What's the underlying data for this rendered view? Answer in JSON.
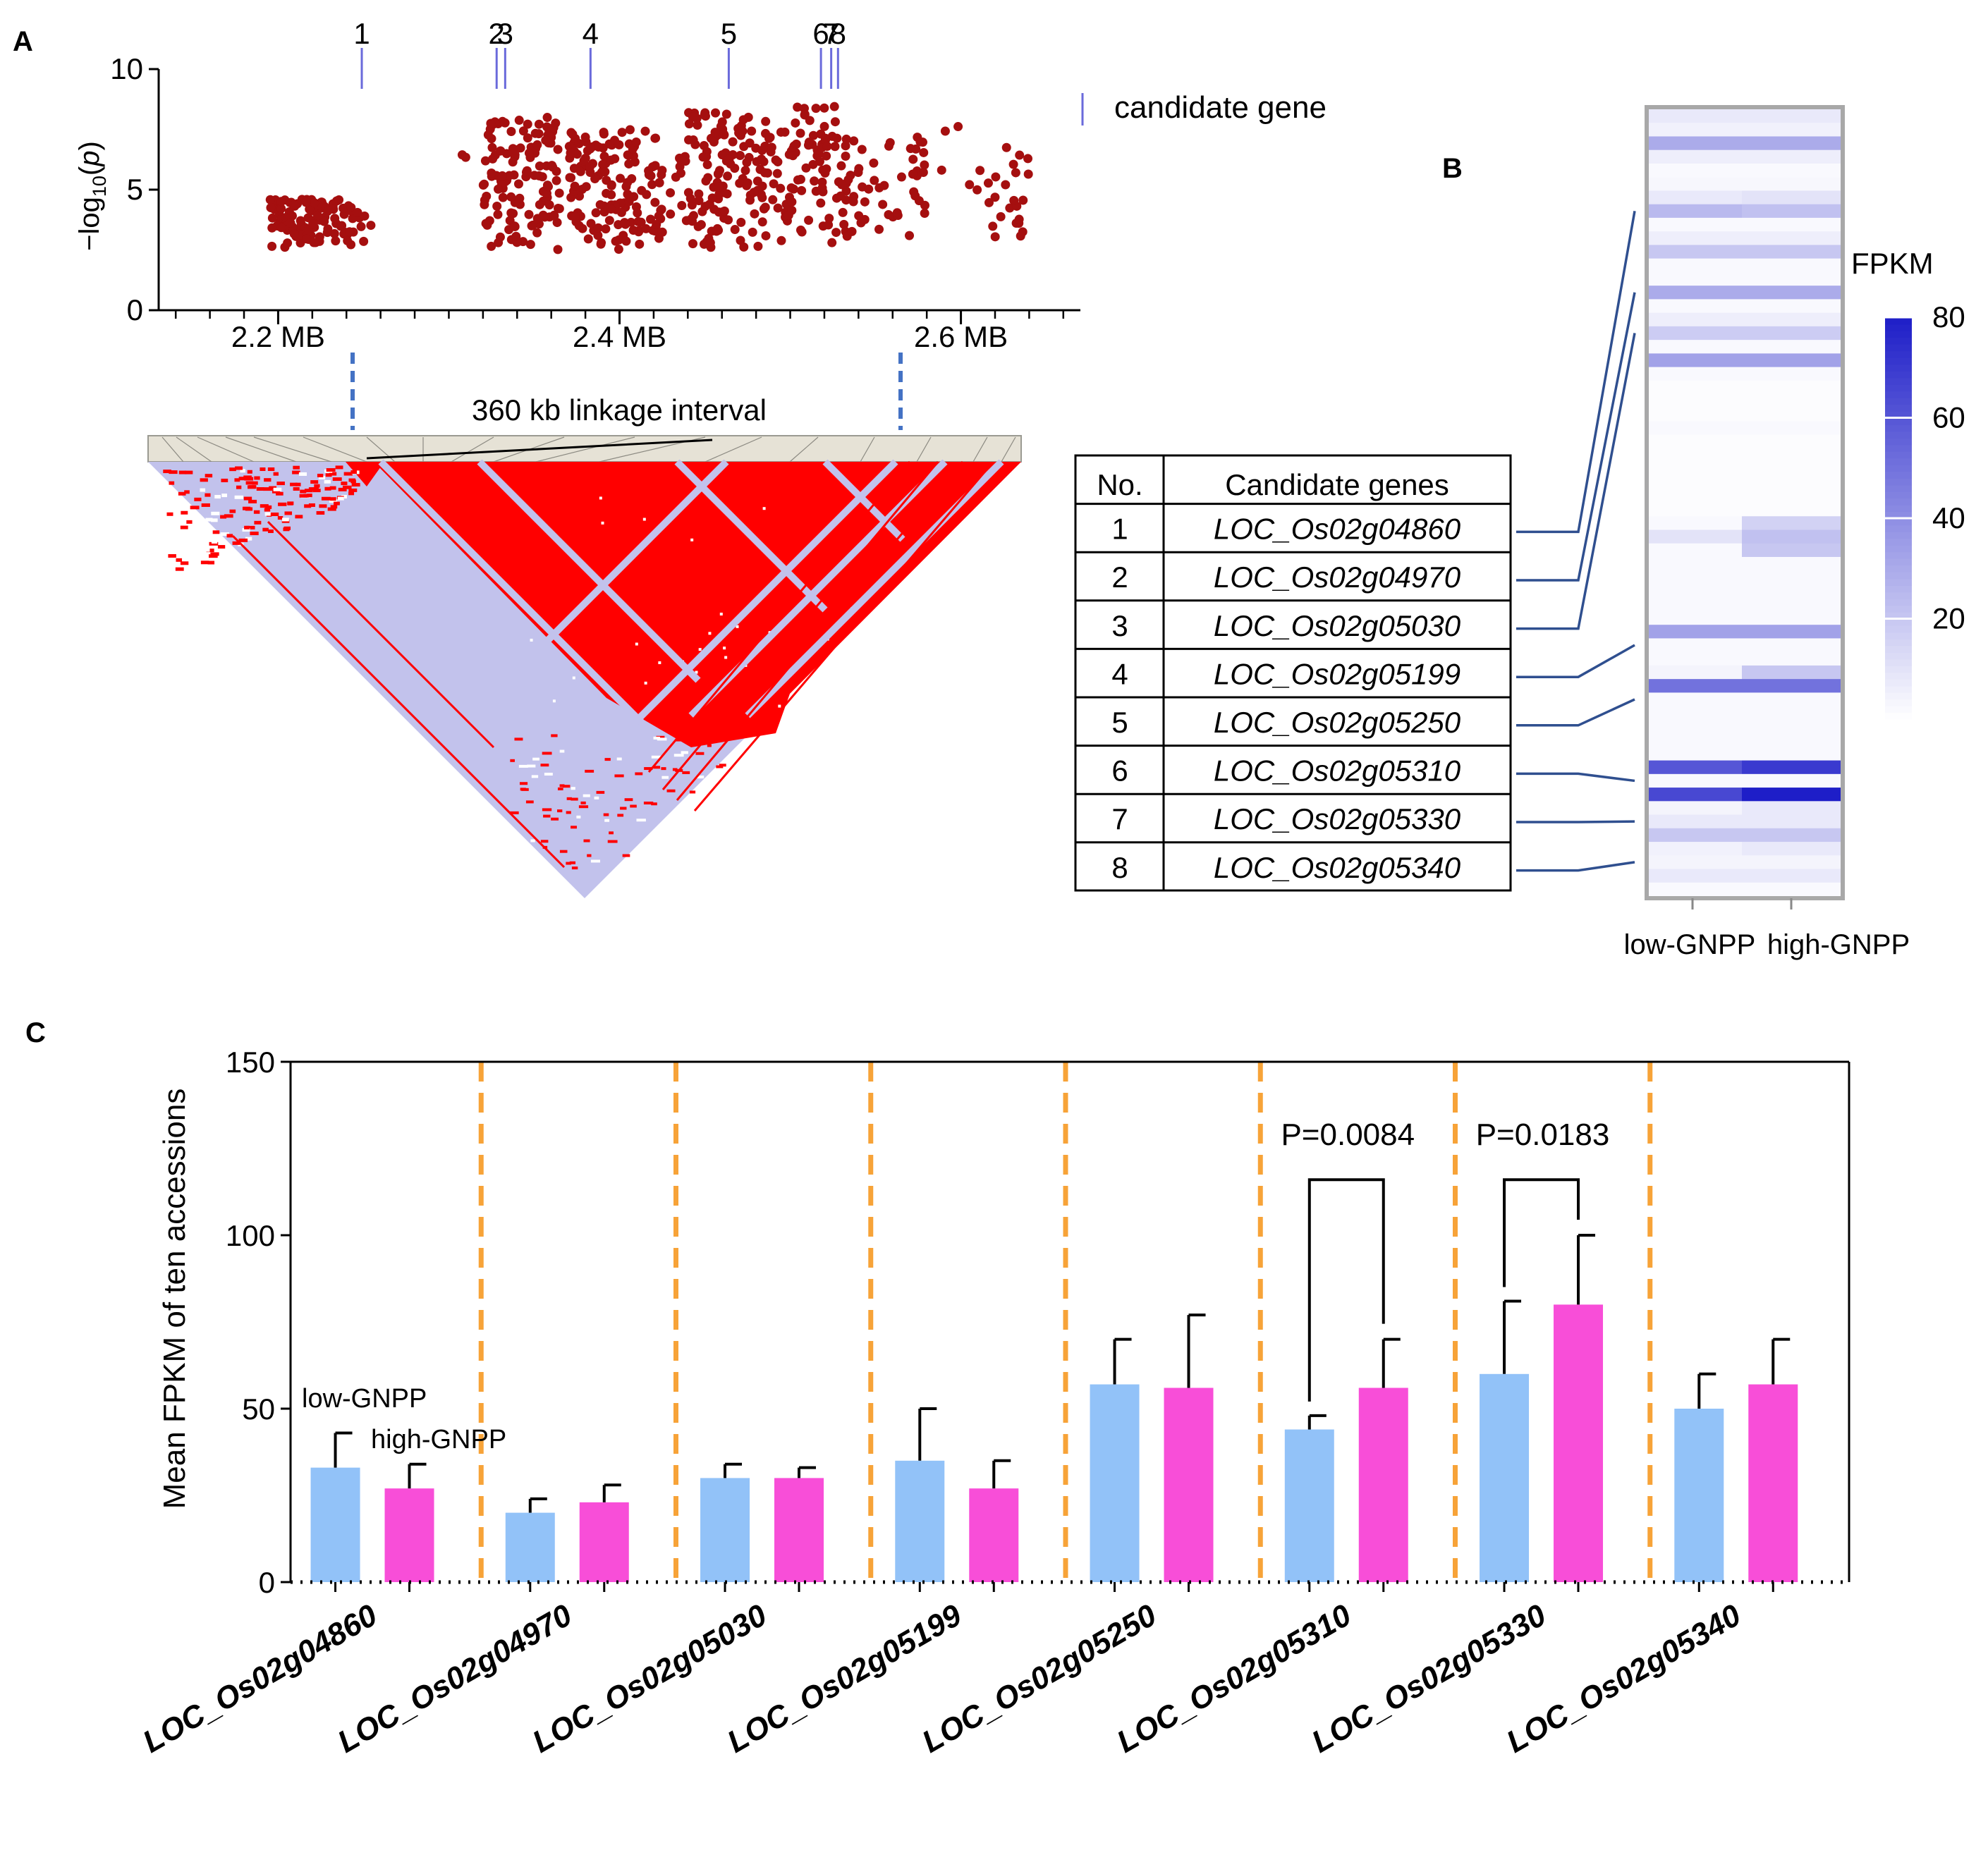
{
  "panels": {
    "a": "A",
    "b": "B",
    "c": "C"
  },
  "chart_data": [
    {
      "id": "manhattan",
      "type": "scatter",
      "ylabel_html": "-log10(p)",
      "ylabel_prefix": "−log",
      "ylabel_sub": "10",
      "ylabel_suffix": "(p)",
      "yticks": [
        0,
        5,
        10
      ],
      "ylim": [
        0,
        10
      ],
      "xlim": [
        2.13,
        2.67
      ],
      "xticks": [
        {
          "v": 2.2,
          "label": "2.2 MB"
        },
        {
          "v": 2.4,
          "label": "2.4 MB"
        },
        {
          "v": 2.6,
          "label": "2.6 MB"
        }
      ],
      "point_color": "#a50f0f",
      "clusters": [
        {
          "x": [
            2.195,
            2.245
          ],
          "y": [
            2.6,
            4.6
          ],
          "n": 100
        },
        {
          "x": [
            2.246,
            2.255
          ],
          "y": [
            2.8,
            4.2
          ],
          "n": 6
        },
        {
          "x": [
            2.305,
            2.31
          ],
          "y": [
            6.0,
            6.5
          ],
          "n": 2
        },
        {
          "x": [
            2.32,
            2.365
          ],
          "y": [
            2.5,
            8.0
          ],
          "n": 130
        },
        {
          "x": [
            2.37,
            2.425
          ],
          "y": [
            2.5,
            7.5
          ],
          "n": 150
        },
        {
          "x": [
            2.425,
            2.44
          ],
          "y": [
            3.0,
            6.5
          ],
          "n": 14
        },
        {
          "x": [
            2.44,
            2.5
          ],
          "y": [
            2.6,
            8.2
          ],
          "n": 150
        },
        {
          "x": [
            2.5,
            2.535
          ],
          "y": [
            2.6,
            8.5
          ],
          "n": 80
        },
        {
          "x": [
            2.535,
            2.58
          ],
          "y": [
            2.8,
            7.3
          ],
          "n": 45
        },
        {
          "x": [
            2.585,
            2.6
          ],
          "y": [
            4.5,
            8.5
          ],
          "n": 3
        },
        {
          "x": [
            2.605,
            2.625
          ],
          "y": [
            2.8,
            6.2
          ],
          "n": 10
        },
        {
          "x": [
            2.625,
            2.64
          ],
          "y": [
            2.7,
            7.2
          ],
          "n": 16
        }
      ],
      "genes": [
        {
          "label": "1",
          "pos": 2.249
        },
        {
          "label": "2",
          "pos": 2.328
        },
        {
          "label": "3",
          "pos": 2.333
        },
        {
          "label": "4",
          "pos": 2.383
        },
        {
          "label": "5",
          "pos": 2.464
        },
        {
          "label": "6",
          "pos": 2.518
        },
        {
          "label": "7",
          "pos": 2.524
        },
        {
          "label": "8",
          "pos": 2.528
        }
      ],
      "legend": "candidate gene",
      "gene_color": "#6a6adb"
    },
    {
      "id": "heatmap",
      "type": "heatmap",
      "title": "FPKM",
      "columns": [
        "low-GNPP",
        "high-GNPP"
      ],
      "colorbar_ticks": [
        20,
        40,
        60,
        80
      ],
      "vmax": 80,
      "rows": [
        [
          8,
          8
        ],
        [
          5,
          5
        ],
        [
          30,
          30
        ],
        [
          6,
          6
        ],
        [
          2,
          2
        ],
        [
          3,
          3
        ],
        [
          8,
          10
        ],
        [
          25,
          22
        ],
        [
          2,
          2
        ],
        [
          6,
          6
        ],
        [
          20,
          20
        ],
        [
          2,
          2
        ],
        [
          2,
          2
        ],
        [
          30,
          30
        ],
        [
          2,
          2
        ],
        [
          6,
          6
        ],
        [
          18,
          18
        ],
        [
          2,
          2
        ],
        [
          33,
          33
        ],
        [
          2,
          2
        ],
        [
          1,
          1
        ],
        [
          1,
          1
        ],
        [
          1,
          1
        ],
        [
          2,
          2
        ],
        [
          1,
          1
        ],
        [
          1,
          1
        ],
        [
          1,
          1
        ],
        [
          1,
          1
        ],
        [
          1,
          1
        ],
        [
          1,
          1
        ],
        [
          2,
          16
        ],
        [
          10,
          22
        ],
        [
          2,
          20
        ],
        [
          2,
          2
        ],
        [
          2,
          2
        ],
        [
          2,
          2
        ],
        [
          2,
          2
        ],
        [
          2,
          2
        ],
        [
          33,
          33
        ],
        [
          2,
          2
        ],
        [
          2,
          2
        ],
        [
          4,
          20
        ],
        [
          50,
          50
        ],
        [
          2,
          2
        ],
        [
          2,
          2
        ],
        [
          2,
          2
        ],
        [
          2,
          2
        ],
        [
          2,
          2
        ],
        [
          60,
          70
        ],
        [
          2,
          2
        ],
        [
          65,
          80
        ],
        [
          4,
          8
        ],
        [
          8,
          8
        ],
        [
          20,
          20
        ],
        [
          5,
          8
        ],
        [
          4,
          4
        ],
        [
          8,
          8
        ],
        [
          2,
          2
        ]
      ],
      "gene_rows": [
        7,
        13,
        16,
        39,
        43,
        49,
        52,
        55
      ]
    },
    {
      "id": "bars",
      "type": "bar",
      "ylabel": "Mean FPKM of ten accessions",
      "yticks": [
        0,
        50,
        100,
        150
      ],
      "ylim": [
        0,
        150
      ],
      "categories": [
        "LOC_Os02g04860",
        "LOC_Os02g04970",
        "LOC_Os02g05030",
        "LOC_Os02g05199",
        "LOC_Os02g05250",
        "LOC_Os02g05310",
        "LOC_Os02g05330",
        "LOC_Os02g05340"
      ],
      "series": [
        {
          "name": "low-GNPP",
          "color": "#92c2f8",
          "values": [
            33,
            20,
            30,
            35,
            57,
            44,
            60,
            50
          ],
          "err": [
            10,
            4,
            4,
            15,
            13,
            4,
            21,
            10
          ]
        },
        {
          "name": "high-GNPP",
          "color": "#f84ed8",
          "values": [
            27,
            23,
            30,
            27,
            56,
            56,
            80,
            57
          ],
          "err": [
            7,
            5,
            3,
            8,
            21,
            14,
            20,
            13
          ]
        }
      ],
      "annotations": [
        {
          "group": 5,
          "text": "P=0.0084"
        },
        {
          "group": 6,
          "text": "P=0.0183"
        }
      ],
      "separator_color": "#f7a338"
    }
  ],
  "table": {
    "headers": [
      "No.",
      "Candidate genes"
    ],
    "rows": [
      {
        "no": "1",
        "gene": "LOC_Os02g04860"
      },
      {
        "no": "2",
        "gene": "LOC_Os02g04970"
      },
      {
        "no": "3",
        "gene": "LOC_Os02g05030"
      },
      {
        "no": "4",
        "gene": "LOC_Os02g05199"
      },
      {
        "no": "5",
        "gene": "LOC_Os02g05250"
      },
      {
        "no": "6",
        "gene": "LOC_Os02g05310"
      },
      {
        "no": "7",
        "gene": "LOC_Os02g05330"
      },
      {
        "no": "8",
        "gene": "LOC_Os02g05340"
      }
    ]
  },
  "ld": {
    "interval_label": "360 kb linkage interval",
    "red": "#ff0000",
    "lavender": "#c2c2ec"
  }
}
